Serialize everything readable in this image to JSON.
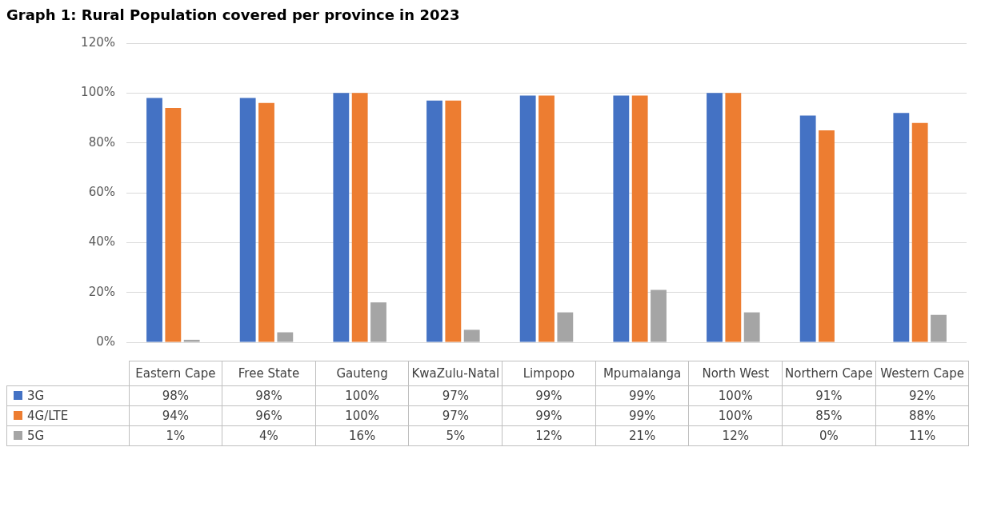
{
  "chart_data": {
    "type": "bar",
    "title": "Graph 1: Rural Population covered per province in 2023",
    "categories": [
      "Eastern Cape",
      "Free State",
      "Gauteng",
      "KwaZulu-Natal",
      "Limpopo",
      "Mpumalanga",
      "North West",
      "Northern Cape",
      "Western Cape"
    ],
    "series": [
      {
        "name": "3G",
        "color": "#4472c4",
        "values": [
          98,
          98,
          100,
          97,
          99,
          99,
          100,
          91,
          92
        ],
        "value_labels": [
          "98%",
          "98%",
          "100%",
          "97%",
          "99%",
          "99%",
          "100%",
          "91%",
          "92%"
        ]
      },
      {
        "name": "4G/LTE",
        "color": "#ed7d31",
        "values": [
          94,
          96,
          100,
          97,
          99,
          99,
          100,
          85,
          88
        ],
        "value_labels": [
          "94%",
          "96%",
          "100%",
          "97%",
          "99%",
          "99%",
          "100%",
          "85%",
          "88%"
        ]
      },
      {
        "name": "5G",
        "color": "#a5a5a5",
        "values": [
          1,
          4,
          16,
          5,
          12,
          21,
          12,
          0,
          11
        ],
        "value_labels": [
          "1%",
          "4%",
          "16%",
          "5%",
          "12%",
          "21%",
          "12%",
          "0%",
          "11%"
        ]
      }
    ],
    "ylim": [
      0,
      120
    ],
    "yticks": [
      {
        "value": 0,
        "label": "0%"
      },
      {
        "value": 20,
        "label": "20%"
      },
      {
        "value": 40,
        "label": "40%"
      },
      {
        "value": 60,
        "label": "60%"
      },
      {
        "value": 80,
        "label": "80%"
      },
      {
        "value": 100,
        "label": "100%"
      },
      {
        "value": 120,
        "label": "120%"
      }
    ],
    "grid": "y",
    "legend": "bottom"
  }
}
